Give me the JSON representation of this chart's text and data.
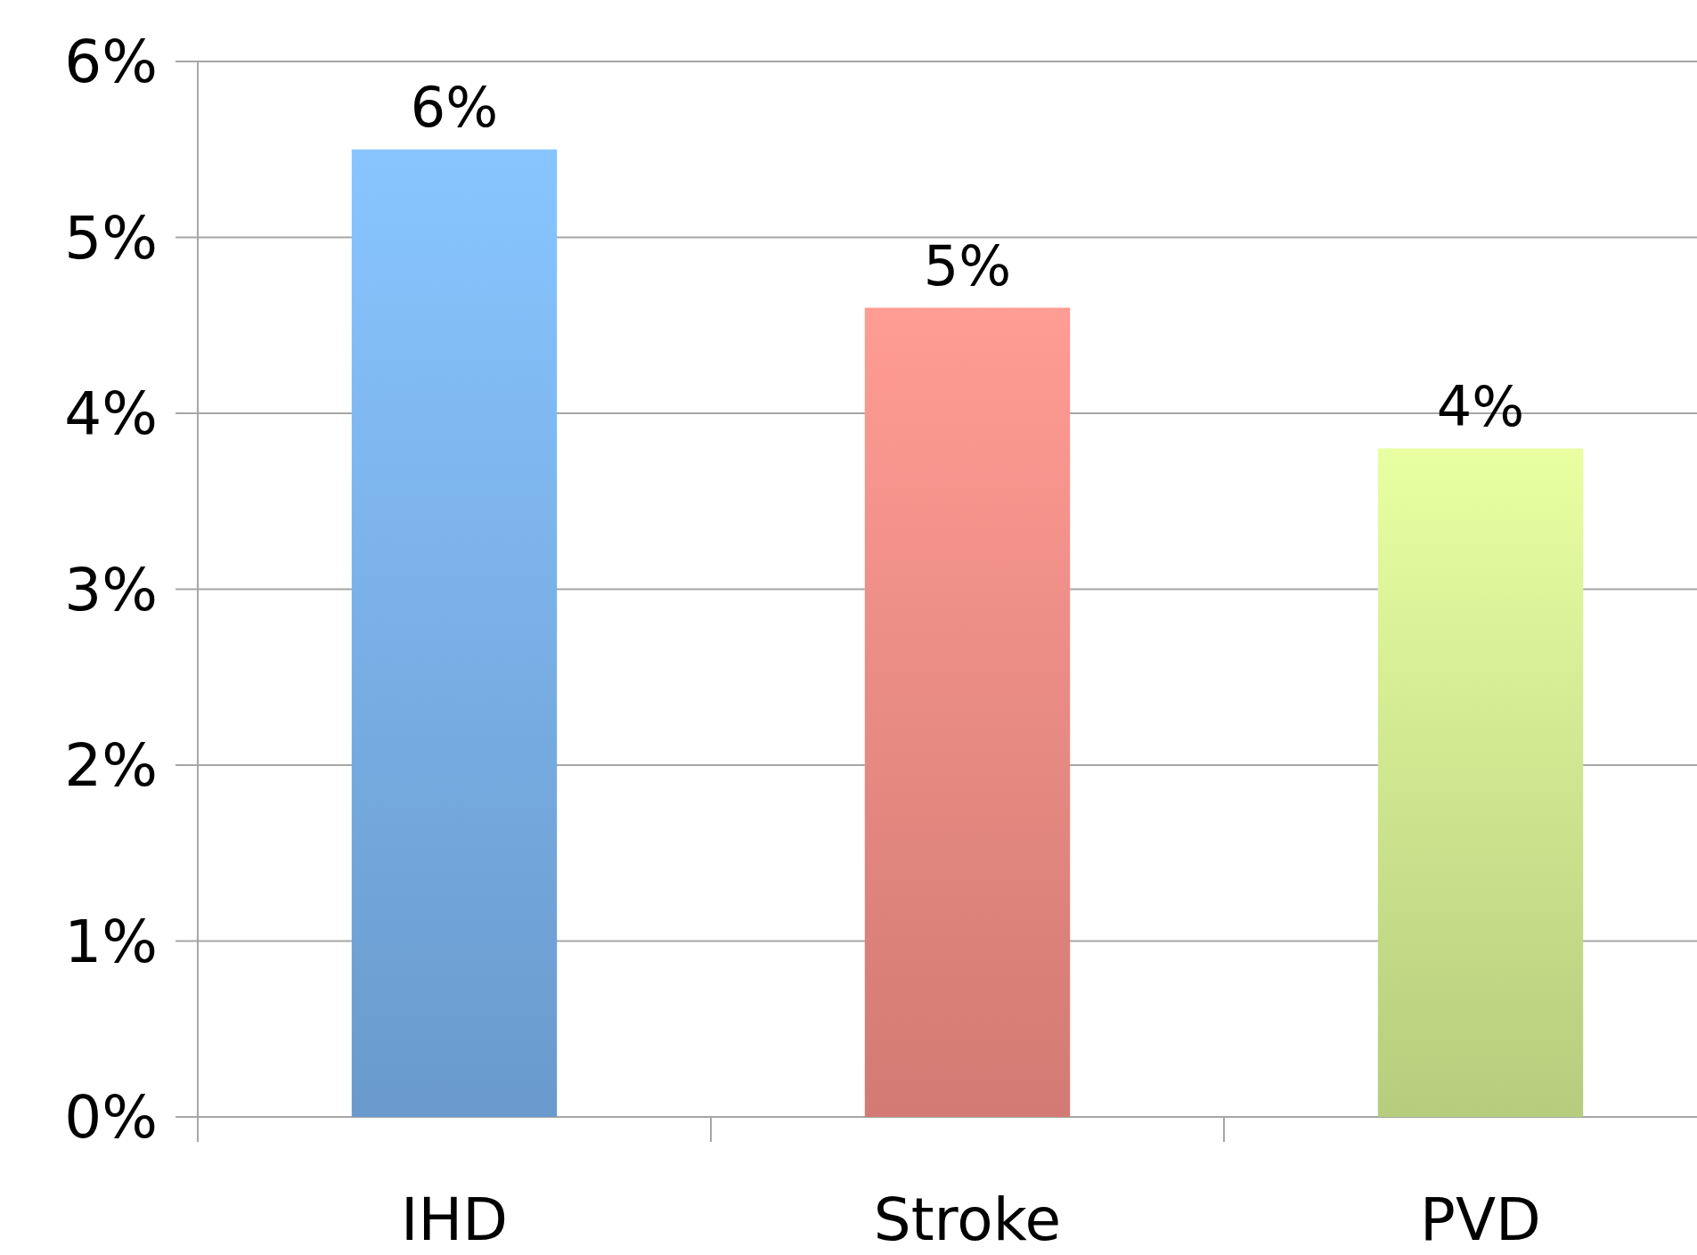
{
  "chart_data": {
    "type": "bar",
    "categories": [
      "IHD",
      "Stroke",
      "PVD"
    ],
    "values": [
      5.5,
      4.6,
      3.8
    ],
    "colors": [
      "#78aee8",
      "#ee8a82",
      "#cde88e"
    ],
    "value_labels": [
      "6%",
      "5%",
      "4%"
    ],
    "ylim": [
      0,
      6
    ],
    "yticks": [
      {
        "value": 0,
        "label": "0%"
      },
      {
        "value": 1,
        "label": "1%"
      },
      {
        "value": 2,
        "label": "2%"
      },
      {
        "value": 3,
        "label": "3%"
      },
      {
        "value": 4,
        "label": "4%"
      },
      {
        "value": 5,
        "label": "5%"
      },
      {
        "value": 6,
        "label": "6%"
      }
    ],
    "grid": "y"
  }
}
